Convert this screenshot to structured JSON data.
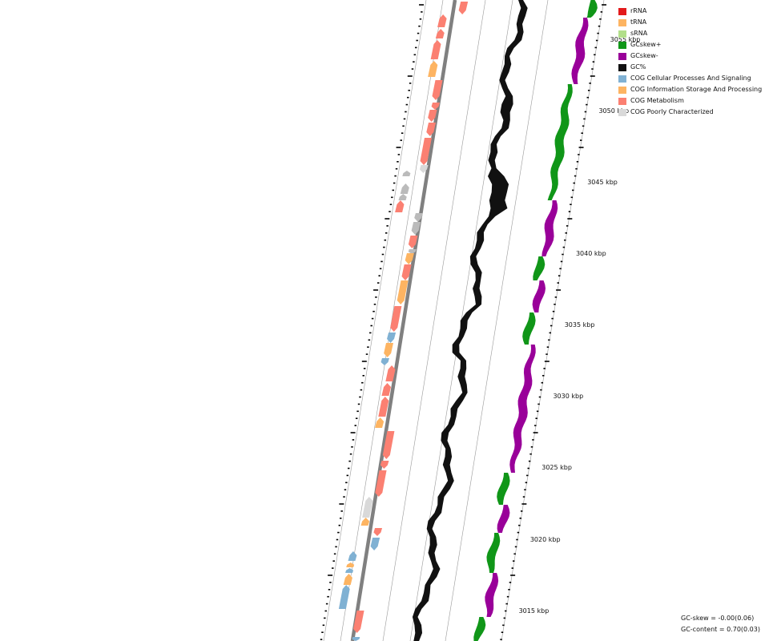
{
  "colors": {
    "rRNA": "#e31a1c",
    "tRNA": "#fdb462",
    "sRNA": "#b2df8a",
    "gc_skew_plus": "#109618",
    "gc_skew_minus": "#990099",
    "gc_content": "#111111",
    "cog_cellular": "#80b1d3",
    "cog_information": "#fdb462",
    "cog_metabolism": "#fb8072",
    "cog_poorly": "#d9d9d9",
    "cog_unassigned": "#bbbbbb",
    "backbone": "#808080",
    "guide": "#999999"
  },
  "legend": [
    {
      "label": "rRNA",
      "color_key": "rRNA"
    },
    {
      "label": "tRNA",
      "color_key": "tRNA"
    },
    {
      "label": "sRNA",
      "color_key": "sRNA"
    },
    {
      "label": "GCskew+",
      "color_key": "gc_skew_plus"
    },
    {
      "label": "GCskew-",
      "color_key": "gc_skew_minus"
    },
    {
      "label": "GC%",
      "color_key": "gc_content"
    },
    {
      "label": "COG Cellular Processes And Signaling",
      "color_key": "cog_cellular"
    },
    {
      "label": "COG Information Storage And Processing",
      "color_key": "cog_information"
    },
    {
      "label": "COG Metabolism",
      "color_key": "cog_metabolism"
    },
    {
      "label": "COG Poorly Characterized",
      "color_key": "cog_poorly"
    }
  ],
  "axis": {
    "unit": "kbp",
    "labels": [
      "3015 kbp",
      "3020 kbp",
      "3025 kbp",
      "3030 kbp",
      "3035 kbp",
      "3040 kbp",
      "3045 kbp",
      "3050 kbp",
      "3055 kbp"
    ]
  },
  "stats": {
    "gc_skew": "GC-skew = -0.00(0.06)",
    "gc_content": "GC-content = 0.70(0.03)"
  }
}
